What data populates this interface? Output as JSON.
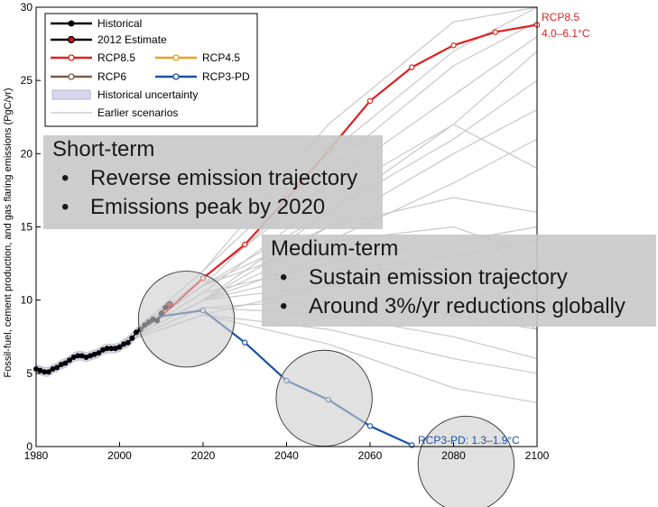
{
  "chart_data": {
    "type": "line",
    "ylabel": "Fossil-fuel, cement production, and gas flaring emissions (PgC/yr)",
    "xlim": [
      1980,
      2100
    ],
    "ylim": [
      0,
      30
    ],
    "xticks": [
      "1980",
      "2000",
      "2020",
      "2040",
      "2060",
      "2080",
      "2100"
    ],
    "yticks": [
      "0",
      "5",
      "10",
      "15",
      "20",
      "25",
      "30"
    ],
    "legend": {
      "position": "top-left",
      "items": [
        {
          "label": "Historical",
          "color": "#000000",
          "kind": "line-dot"
        },
        {
          "label": "2012 Estimate",
          "color": "#d01010",
          "kind": "line-dot-black"
        },
        {
          "label": "RCP8.5",
          "color": "#e02020",
          "kind": "line-circle"
        },
        {
          "label": "RCP4.5",
          "color": "#e8a020",
          "kind": "line-circle"
        },
        {
          "label": "RCP6",
          "color": "#7a5c48",
          "kind": "line-circle"
        },
        {
          "label": "RCP3-PD",
          "color": "#1a52a8",
          "kind": "line-circle"
        },
        {
          "label": "Historical uncertainty",
          "color": "#d8d8ec",
          "kind": "patch"
        },
        {
          "label": "Earlier scenarios",
          "color": "#c8c8c8",
          "kind": "line-thin"
        }
      ]
    },
    "series": [
      {
        "name": "Historical",
        "color": "#000000",
        "x": [
          1980,
          1981,
          1982,
          1983,
          1984,
          1985,
          1986,
          1987,
          1988,
          1989,
          1990,
          1991,
          1992,
          1993,
          1994,
          1995,
          1996,
          1997,
          1998,
          1999,
          2000,
          2001,
          2002,
          2003,
          2004,
          2005,
          2006,
          2007,
          2008,
          2009,
          2010,
          2011
        ],
        "y": [
          5.3,
          5.2,
          5.1,
          5.1,
          5.3,
          5.4,
          5.6,
          5.7,
          5.9,
          6.1,
          6.2,
          6.2,
          6.1,
          6.2,
          6.3,
          6.4,
          6.6,
          6.7,
          6.7,
          6.7,
          6.8,
          7.0,
          7.1,
          7.4,
          7.8,
          8.0,
          8.3,
          8.5,
          8.7,
          8.6,
          9.1,
          9.5
        ]
      },
      {
        "name": "2012 Estimate",
        "color": "#d01010",
        "x": [
          2012
        ],
        "y": [
          9.7
        ]
      },
      {
        "name": "RCP8.5",
        "color": "#e02020",
        "x": [
          2005,
          2010,
          2020,
          2030,
          2040,
          2050,
          2060,
          2070,
          2080,
          2090,
          2100
        ],
        "y": [
          8.0,
          8.9,
          11.5,
          13.8,
          16.9,
          20.2,
          23.6,
          25.9,
          27.4,
          28.3,
          28.8
        ]
      },
      {
        "name": "RCP3-PD",
        "color": "#1a52a8",
        "x": [
          2005,
          2010,
          2020,
          2030,
          2040,
          2050,
          2060,
          2070
        ],
        "y": [
          8.0,
          8.9,
          9.3,
          7.1,
          4.5,
          3.2,
          1.4,
          0.1
        ]
      },
      {
        "name": "Earlier scenarios",
        "color": "#c8c8c8",
        "lines": [
          {
            "x": [
              2000,
              2020,
              2050,
              2080,
              2100
            ],
            "y": [
              7,
              10,
              14,
              18,
              21
            ]
          },
          {
            "x": [
              2000,
              2020,
              2050,
              2080,
              2100
            ],
            "y": [
              7,
              11,
              16,
              21,
              25
            ]
          },
          {
            "x": [
              2000,
              2020,
              2050,
              2080,
              2100
            ],
            "y": [
              7,
              11.5,
              18,
              24,
              28
            ]
          },
          {
            "x": [
              2000,
              2020,
              2050,
              2080,
              2100
            ],
            "y": [
              7,
              12,
              20,
              27,
              30
            ]
          },
          {
            "x": [
              2000,
              2020,
              2050,
              2080,
              2100
            ],
            "y": [
              7,
              10,
              12,
              13,
              14
            ]
          },
          {
            "x": [
              2000,
              2020,
              2050,
              2080,
              2100
            ],
            "y": [
              7,
              9.5,
              10,
              9,
              8
            ]
          },
          {
            "x": [
              2000,
              2020,
              2050,
              2080,
              2100
            ],
            "y": [
              7,
              9,
              8,
              6,
              5
            ]
          },
          {
            "x": [
              2000,
              2020,
              2050,
              2080,
              2100
            ],
            "y": [
              7,
              10,
              13,
              11,
              8
            ]
          },
          {
            "x": [
              2000,
              2020,
              2050,
              2080,
              2100
            ],
            "y": [
              7,
              11,
              15,
              17,
              16
            ]
          },
          {
            "x": [
              2000,
              2020,
              2050,
              2080,
              2100
            ],
            "y": [
              7,
              10.5,
              17,
              22,
              19
            ]
          },
          {
            "x": [
              2000,
              2020,
              2050,
              2080,
              2100
            ],
            "y": [
              7,
              9,
              7,
              4,
              3
            ]
          },
          {
            "x": [
              2000,
              2020,
              2050,
              2080,
              2100
            ],
            "y": [
              7,
              12,
              22,
              29,
              30
            ]
          },
          {
            "x": [
              2000,
              2020,
              2050,
              2080,
              2100
            ],
            "y": [
              7,
              10,
              11,
              10,
              11
            ]
          },
          {
            "x": [
              2000,
              2020,
              2050,
              2080,
              2100
            ],
            "y": [
              7,
              11,
              14,
              15,
              13
            ]
          },
          {
            "x": [
              2000,
              2020,
              2050,
              2080,
              2100
            ],
            "y": [
              7,
              9.5,
              9,
              7.5,
              6
            ]
          },
          {
            "x": [
              2000,
              2020,
              2050,
              2080,
              2100
            ],
            "y": [
              7,
              10,
              15,
              20,
              23
            ]
          },
          {
            "x": [
              2000,
              2020,
              2050,
              2080,
              2100
            ],
            "y": [
              7,
              11,
              19,
              26,
              29
            ]
          },
          {
            "x": [
              2000,
              2020,
              2050,
              2080,
              2100
            ],
            "y": [
              7,
              10.5,
              12.5,
              14,
              15
            ]
          },
          {
            "x": [
              2000,
              2020,
              2050,
              2080,
              2100
            ],
            "y": [
              7,
              9,
              11,
              12,
              10
            ]
          },
          {
            "x": [
              2000,
              2020,
              2050,
              2080,
              2100
            ],
            "y": [
              7,
              10,
              16,
              22,
              27
            ]
          }
        ]
      }
    ],
    "annotations": [
      {
        "text": "RCP8.5",
        "color": "#e02020"
      },
      {
        "text": "4.0–6.1°C",
        "color": "#e02020"
      },
      {
        "text": "RCP3-PD: 1.3–1.9°C",
        "color": "#1a52a8"
      }
    ],
    "highlight_circles": [
      {
        "center": [
          2016,
          8.7
        ],
        "radius_years": 11.5
      },
      {
        "center": [
          2049,
          3.3
        ],
        "radius_years": 11.5
      },
      {
        "center": [
          2083,
          -1.2
        ],
        "radius_years": 11.5
      }
    ]
  },
  "overlay": {
    "short_term": {
      "title": "Short-term",
      "bullets": [
        "Reverse emission trajectory",
        "Emissions peak by 2020"
      ]
    },
    "medium_term": {
      "title": "Medium-term",
      "bullets": [
        "Sustain emission trajectory",
        "Around 3%/yr reductions globally"
      ]
    }
  }
}
